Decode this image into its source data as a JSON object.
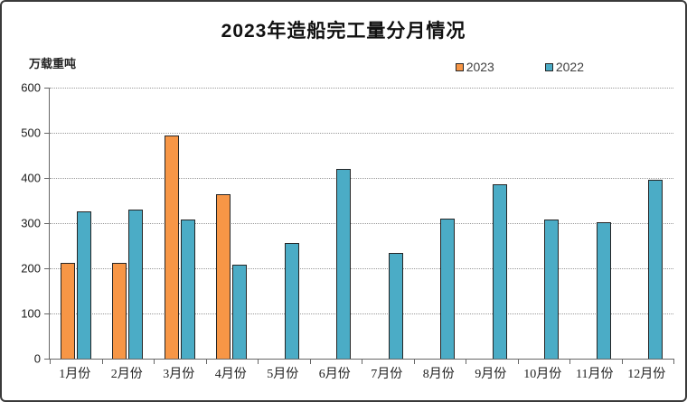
{
  "title": "2023年造船完工量分月情况",
  "y_axis_unit": "万载重吨",
  "legend": {
    "items": [
      {
        "label": "2023",
        "color": "#F79646"
      },
      {
        "label": "2022",
        "color": "#4BACC6"
      }
    ]
  },
  "colors": {
    "series_2023": "#F79646",
    "series_2022": "#4BACC6",
    "bar_border": "#262626",
    "gridline": "#9A9A9A",
    "axis": "#666666",
    "frame_border": "#3A3A3A"
  },
  "chart_data": {
    "type": "bar",
    "categories": [
      "1月份",
      "2月份",
      "3月份",
      "4月份",
      "5月份",
      "6月份",
      "7月份",
      "8月份",
      "9月份",
      "10月份",
      "11月份",
      "12月份"
    ],
    "series": [
      {
        "name": "2023",
        "color": "#F79646",
        "values": [
          212,
          212,
          494,
          364,
          null,
          null,
          null,
          null,
          null,
          null,
          null,
          null
        ]
      },
      {
        "name": "2022",
        "color": "#4BACC6",
        "values": [
          327,
          330,
          308,
          209,
          256,
          421,
          235,
          310,
          386,
          308,
          303,
          396
        ]
      }
    ],
    "title": "2023年造船完工量分月情况",
    "xlabel": "",
    "ylabel": "万载重吨",
    "ylim": [
      0,
      600
    ],
    "ytick_interval": 100,
    "grid": "horizontal-dotted",
    "legend_position": "top-right"
  }
}
